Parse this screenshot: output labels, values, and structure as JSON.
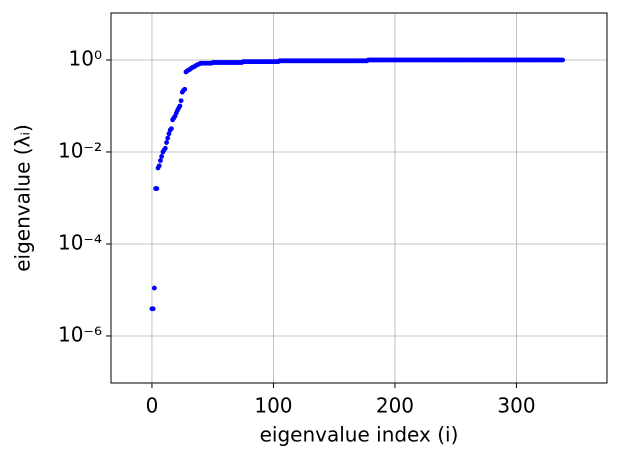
{
  "chart_data": {
    "type": "scatter",
    "xlabel": "eigenvalue index (i)",
    "ylabel": "eigenvalue (λᵢ)",
    "color": "#0000ff",
    "log_y": true,
    "grid": true,
    "xlim": [
      -33.7,
      374.5
    ],
    "ylim": [
      9.5e-08,
      10.5
    ],
    "xticks": [
      0,
      100,
      200,
      300
    ],
    "yticks": [
      {
        "value": 1,
        "label": "10⁰"
      },
      {
        "value": 0.01,
        "label": "10⁻²"
      },
      {
        "value": 0.0001,
        "label": "10⁻⁴"
      },
      {
        "value": 1e-06,
        "label": "10⁻⁶"
      }
    ],
    "x": [
      0,
      1,
      2,
      3,
      4,
      5,
      6,
      7,
      8,
      9,
      10,
      11,
      12,
      13,
      14,
      15,
      16,
      17,
      18,
      19,
      20,
      21,
      22,
      23,
      24,
      25,
      26,
      27,
      28,
      29,
      30,
      31,
      32,
      33,
      34,
      35,
      36,
      37,
      38,
      39,
      40,
      41,
      42,
      43,
      44,
      45,
      46,
      47,
      48,
      49,
      50,
      51,
      52,
      53,
      54,
      55,
      56,
      57,
      58,
      59,
      60,
      61,
      62,
      63,
      64,
      65,
      66,
      67,
      68,
      69,
      70,
      71,
      72,
      73,
      74,
      75,
      76,
      77,
      78,
      79,
      80,
      81,
      82,
      83,
      84,
      85,
      86,
      87,
      88,
      89,
      90,
      91,
      92,
      93,
      94,
      95,
      96,
      97,
      98,
      99,
      100,
      101,
      102,
      103,
      104,
      105,
      106,
      107,
      108,
      109,
      110,
      111,
      112,
      113,
      114,
      115,
      116,
      117,
      118,
      119,
      120,
      121,
      122,
      123,
      124,
      125,
      126,
      127,
      128,
      129,
      130,
      131,
      132,
      133,
      134,
      135,
      136,
      137,
      138,
      139,
      140,
      141,
      142,
      143,
      144,
      145,
      146,
      147,
      148,
      149,
      150,
      151,
      152,
      153,
      154,
      155,
      156,
      157,
      158,
      159,
      160,
      161,
      162,
      163,
      164,
      165,
      166,
      167,
      168,
      169,
      170,
      171,
      172,
      173,
      174,
      175,
      176,
      177,
      178,
      179,
      180,
      181,
      182,
      183,
      184,
      185,
      186,
      187,
      188,
      189,
      190,
      191,
      192,
      193,
      194,
      195,
      196,
      197,
      198,
      199,
      200,
      201,
      202,
      203,
      204,
      205,
      206,
      207,
      208,
      209,
      210,
      211,
      212,
      213,
      214,
      215,
      216,
      217,
      218,
      219,
      220,
      221,
      222,
      223,
      224,
      225,
      226,
      227,
      228,
      229,
      230,
      231,
      232,
      233,
      234,
      235,
      236,
      237,
      238,
      239,
      240,
      241,
      242,
      243,
      244,
      245,
      246,
      247,
      248,
      249,
      250,
      251,
      252,
      253,
      254,
      255,
      256,
      257,
      258,
      259,
      260,
      261,
      262,
      263,
      264,
      265,
      266,
      267,
      268,
      269,
      270,
      271,
      272,
      273,
      274,
      275,
      276,
      277,
      278,
      279,
      280,
      281,
      282,
      283,
      284,
      285,
      286,
      287,
      288,
      289,
      290,
      291,
      292,
      293,
      294,
      295,
      296,
      297,
      298,
      299,
      300,
      301,
      302,
      303,
      304,
      305,
      306,
      307,
      308,
      309,
      310,
      311,
      312,
      313,
      314,
      315,
      316,
      317,
      318,
      319,
      320,
      321,
      322,
      323,
      324,
      325,
      326,
      327,
      328,
      329,
      330,
      331,
      332,
      333,
      334,
      335,
      336,
      337,
      338
    ],
    "values": [
      3.9e-06,
      3.9e-06,
      1.1e-05,
      0.0016,
      0.0016,
      0.0045,
      0.005,
      0.0065,
      0.008,
      0.01,
      0.011,
      0.012,
      0.016,
      0.02,
      0.025,
      0.03,
      0.032,
      0.05,
      0.055,
      0.06,
      0.07,
      0.08,
      0.09,
      0.1,
      0.13,
      0.2,
      0.22,
      0.23,
      0.55,
      0.58,
      0.6,
      0.62,
      0.65,
      0.68,
      0.7,
      0.72,
      0.75,
      0.78,
      0.8,
      0.82,
      0.85,
      0.85,
      0.85,
      0.85,
      0.85,
      0.85,
      0.85,
      0.85,
      0.85,
      0.85,
      0.88,
      0.88,
      0.88,
      0.88,
      0.88,
      0.88,
      0.88,
      0.88,
      0.88,
      0.88,
      0.88,
      0.88,
      0.88,
      0.88,
      0.88,
      0.88,
      0.88,
      0.88,
      0.88,
      0.88,
      0.88,
      0.88,
      0.88,
      0.88,
      0.88,
      0.92,
      0.92,
      0.92,
      0.92,
      0.92,
      0.92,
      0.92,
      0.92,
      0.92,
      0.92,
      0.92,
      0.92,
      0.92,
      0.92,
      0.92,
      0.92,
      0.92,
      0.92,
      0.92,
      0.92,
      0.92,
      0.92,
      0.92,
      0.92,
      0.92,
      0.92,
      0.92,
      0.92,
      0.92,
      0.92,
      0.96,
      0.96,
      0.96,
      0.96,
      0.96,
      0.96,
      0.96,
      0.96,
      0.96,
      0.96,
      0.96,
      0.96,
      0.96,
      0.96,
      0.96,
      0.96,
      0.96,
      0.96,
      0.96,
      0.96,
      0.96,
      0.96,
      0.96,
      0.96,
      0.96,
      0.96,
      0.96,
      0.96,
      0.96,
      0.96,
      0.96,
      0.96,
      0.96,
      0.96,
      0.96,
      0.96,
      0.96,
      0.96,
      0.96,
      0.96,
      0.96,
      0.96,
      0.96,
      0.96,
      0.96,
      0.96,
      0.96,
      0.96,
      0.96,
      0.96,
      0.96,
      0.96,
      0.96,
      0.96,
      0.96,
      0.96,
      0.96,
      0.96,
      0.96,
      0.96,
      0.96,
      0.96,
      0.96,
      0.96,
      0.96,
      0.96,
      0.96,
      0.96,
      0.96,
      0.96,
      0.96,
      0.96,
      0.96,
      1.0,
      1.0,
      1.0,
      1.0,
      1.0,
      1.0,
      1.0,
      1.0,
      1.0,
      1.0,
      1.0,
      1.0,
      1.0,
      1.0,
      1.0,
      1.0,
      1.0,
      1.0,
      1.0,
      1.0,
      1.0,
      1.0,
      1.0,
      1.0,
      1.0,
      1.0,
      1.0,
      1.0,
      1.0,
      1.0,
      1.0,
      1.0,
      1.0,
      1.0,
      1.0,
      1.0,
      1.0,
      1.0,
      1.0,
      1.0,
      1.0,
      1.0,
      1.0,
      1.0,
      1.0,
      1.0,
      1.0,
      1.0,
      1.0,
      1.0,
      1.0,
      1.0,
      1.0,
      1.0,
      1.0,
      1.0,
      1.0,
      1.0,
      1.0,
      1.0,
      1.0,
      1.0,
      1.0,
      1.0,
      1.0,
      1.0,
      1.0,
      1.0,
      1.0,
      1.0,
      1.0,
      1.0,
      1.0,
      1.0,
      1.0,
      1.0,
      1.0,
      1.0,
      1.0,
      1.0,
      1.0,
      1.0,
      1.0,
      1.0,
      1.0,
      1.0,
      1.0,
      1.0,
      1.0,
      1.0,
      1.0,
      1.0,
      1.0,
      1.0,
      1.0,
      1.0,
      1.0,
      1.0,
      1.0,
      1.0,
      1.0,
      1.0,
      1.0,
      1.0,
      1.0,
      1.0,
      1.0,
      1.0,
      1.0,
      1.0,
      1.0,
      1.0,
      1.0,
      1.0,
      1.0,
      1.0,
      1.0,
      1.0,
      1.0,
      1.0,
      1.0,
      1.0,
      1.0,
      1.0,
      1.0,
      1.0,
      1.0,
      1.0,
      1.0,
      1.0,
      1.0,
      1.0,
      1.0,
      1.0,
      1.0,
      1.0,
      1.0,
      1.0,
      1.0,
      1.0,
      1.0,
      1.0,
      1.0,
      1.0,
      1.0,
      1.0,
      1.0,
      1.0,
      1.0,
      1.0,
      1.0,
      1.0,
      1.0,
      1.0,
      1.0,
      1.0,
      1.0,
      1.0,
      1.0,
      1.0,
      1.0
    ]
  }
}
